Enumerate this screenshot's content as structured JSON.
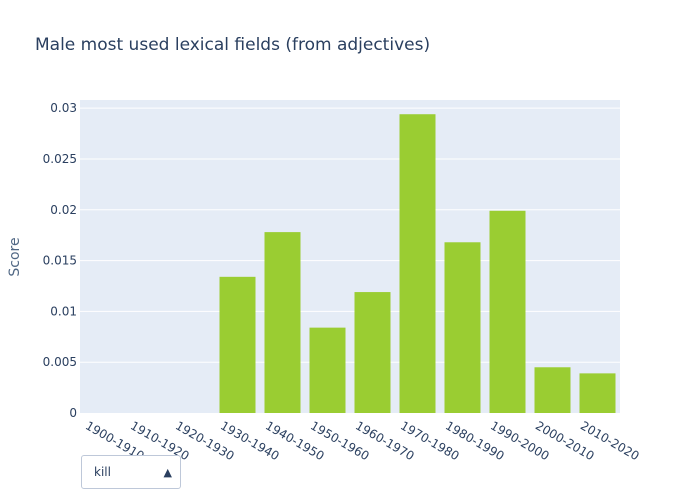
{
  "chart_data": {
    "type": "bar",
    "title": "Male most used lexical fields (from adjectives)",
    "xlabel": "",
    "ylabel": "Score",
    "ylim": [
      0,
      0.0308
    ],
    "yticks": [
      "0",
      "0.005",
      "0.01",
      "0.015",
      "0.02",
      "0.025",
      "0.03"
    ],
    "categories": [
      "1900-1910",
      "1910-1920",
      "1920-1930",
      "1930-1940",
      "1940-1950",
      "1950-1960",
      "1960-1970",
      "1970-1980",
      "1980-1990",
      "1990-2000",
      "2000-2010",
      "2010-2020"
    ],
    "values": [
      0,
      0,
      0,
      0.0134,
      0.0178,
      0.0084,
      0.0119,
      0.0294,
      0.0168,
      0.0199,
      0.0045,
      0.0039
    ],
    "bar_color": "#9acd32",
    "plot_bg": "#e5ecf6",
    "grid": true,
    "legend": false
  },
  "dropdown": {
    "selected": "kill",
    "arrow": "▲"
  },
  "colors": {
    "text": "#2a3f5f",
    "title": "#2a3f5f",
    "tick": "#506784"
  }
}
